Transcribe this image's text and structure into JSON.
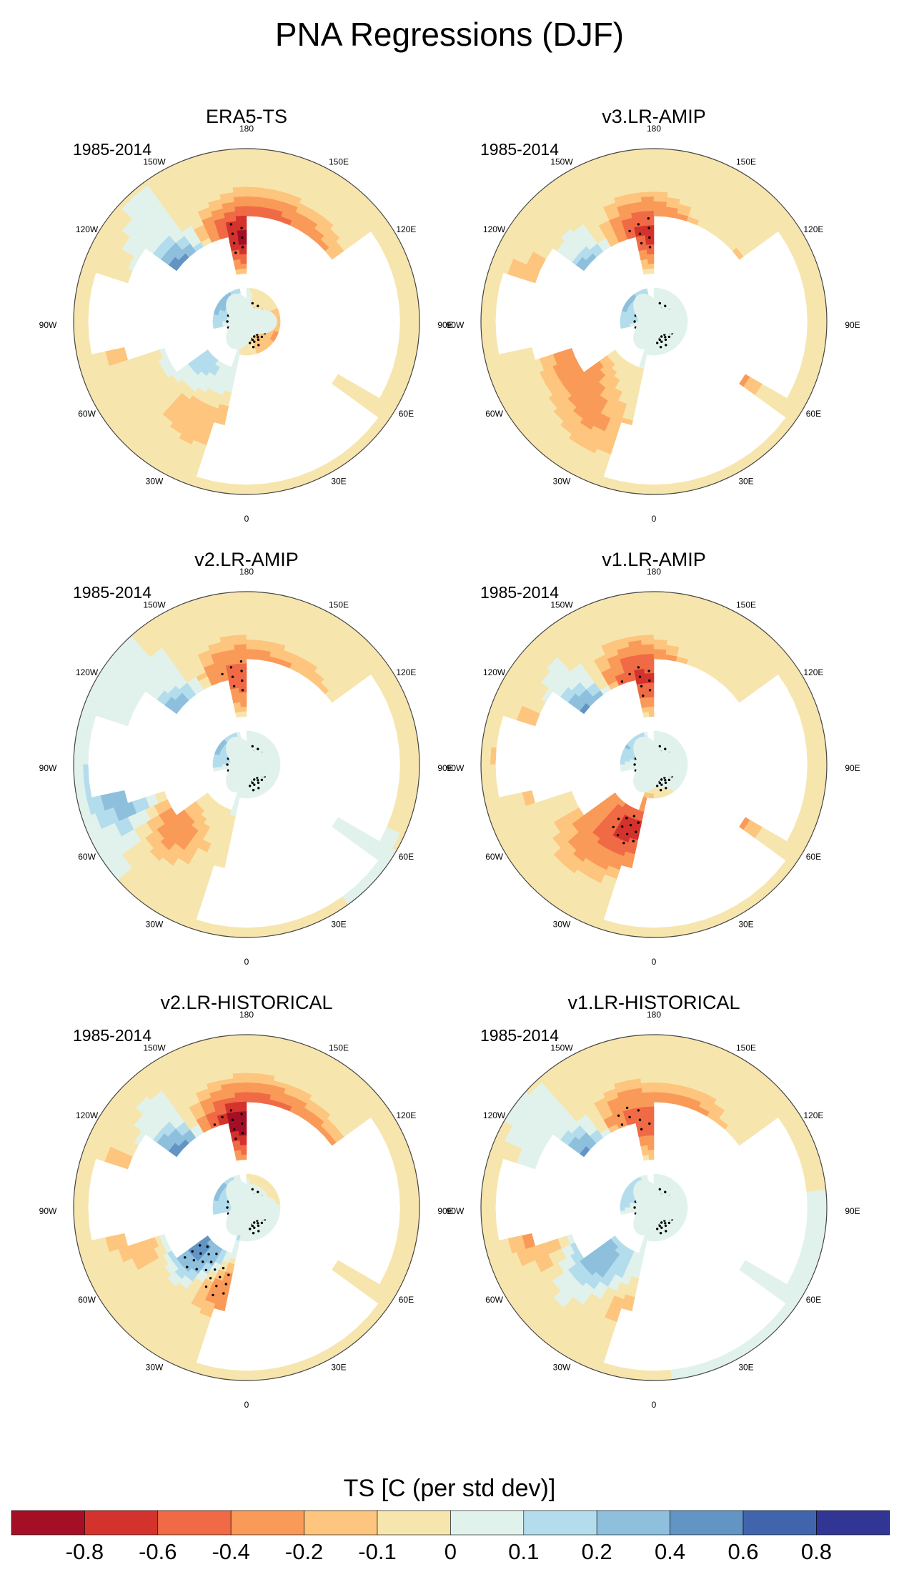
{
  "figure": {
    "title": "PNA Regressions (DJF)"
  },
  "colors": {
    "land": "#ffffff",
    "coast": "#8a8a8a",
    "border": "#444444"
  },
  "chart_data": [
    {
      "type": "heatmap",
      "projection": "north-polar-stereographic",
      "title": "ERA5-TS",
      "period": "1985-2014",
      "lon_labels": [
        "180",
        "150E",
        "120E",
        "90E",
        "60E",
        "30E",
        "0",
        "30W",
        "60W",
        "90W",
        "120W",
        "150W"
      ],
      "anomalies": [
        {
          "lon": -175,
          "lat": 47,
          "value": -0.7,
          "stipple": true
        },
        {
          "lon": 165,
          "lat": 42,
          "value": -0.35
        },
        {
          "lon": -135,
          "lat": 58,
          "value": 0.55,
          "stipple": true
        },
        {
          "lon": -115,
          "lat": 50,
          "value": 0.5
        },
        {
          "lon": 140,
          "lat": 42,
          "value": -0.25
        },
        {
          "lon": 20,
          "lat": 85,
          "value": 0.08,
          "stipple": true
        },
        {
          "lon": -90,
          "lat": 25,
          "value": -0.3
        },
        {
          "lon": -30,
          "lat": 35,
          "value": -0.2
        },
        {
          "lon": -40,
          "lat": 55,
          "value": 0.15
        },
        {
          "lon": 60,
          "lat": 75,
          "value": -0.25
        },
        {
          "lon": 10,
          "lat": 40,
          "value": -0.15
        }
      ]
    },
    {
      "type": "heatmap",
      "projection": "north-polar-stereographic",
      "title": "v3.LR-AMIP",
      "period": "1985-2014",
      "lon_labels": [
        "180",
        "150E",
        "120E",
        "90E",
        "60E",
        "30E",
        "0",
        "30W",
        "60W",
        "90W",
        "120W",
        "150W"
      ],
      "anomalies": [
        {
          "lon": -175,
          "lat": 45,
          "value": -0.7,
          "stipple": true
        },
        {
          "lon": -140,
          "lat": 57,
          "value": 0.4
        },
        {
          "lon": -110,
          "lat": 55,
          "value": 0.35
        },
        {
          "lon": 20,
          "lat": 85,
          "value": 0.08,
          "stipple": true
        },
        {
          "lon": -60,
          "lat": 45,
          "value": -0.3
        },
        {
          "lon": -30,
          "lat": 30,
          "value": -0.2
        },
        {
          "lon": 40,
          "lat": 40,
          "value": -0.5
        },
        {
          "lon": -100,
          "lat": 25,
          "value": -0.3
        },
        {
          "lon": 120,
          "lat": 45,
          "value": -0.2
        }
      ]
    },
    {
      "type": "heatmap",
      "projection": "north-polar-stereographic",
      "title": "v2.LR-AMIP",
      "period": "1985-2014",
      "lon_labels": [
        "180",
        "150E",
        "120E",
        "90E",
        "60E",
        "30E",
        "0",
        "30W",
        "60W",
        "90W",
        "120W",
        "150W"
      ],
      "anomalies": [
        {
          "lon": -175,
          "lat": 45,
          "value": -0.5,
          "stipple": true
        },
        {
          "lon": -130,
          "lat": 57,
          "value": 0.45,
          "stipple": true
        },
        {
          "lon": -110,
          "lat": 50,
          "value": 0.3
        },
        {
          "lon": 20,
          "lat": 85,
          "value": 0.08,
          "stipple": true
        },
        {
          "lon": -50,
          "lat": 40,
          "value": -0.3
        },
        {
          "lon": -80,
          "lat": 25,
          "value": 0.4
        },
        {
          "lon": 150,
          "lat": 45,
          "value": -0.25
        }
      ]
    },
    {
      "type": "heatmap",
      "projection": "north-polar-stereographic",
      "title": "v1.LR-AMIP",
      "period": "1985-2014",
      "lon_labels": [
        "180",
        "150E",
        "120E",
        "90E",
        "60E",
        "30E",
        "0",
        "30W",
        "60W",
        "90W",
        "120W",
        "150W"
      ],
      "anomalies": [
        {
          "lon": -170,
          "lat": 45,
          "value": -0.7,
          "stipple": true
        },
        {
          "lon": -135,
          "lat": 55,
          "value": 0.5,
          "stipple": true
        },
        {
          "lon": -110,
          "lat": 50,
          "value": 0.45
        },
        {
          "lon": 20,
          "lat": 85,
          "value": 0.08,
          "stipple": true
        },
        {
          "lon": -20,
          "lat": 55,
          "value": -0.65,
          "stipple": true
        },
        {
          "lon": -40,
          "lat": 35,
          "value": -0.2
        },
        {
          "lon": 40,
          "lat": 40,
          "value": -0.5
        },
        {
          "lon": -95,
          "lat": 25,
          "value": -0.35
        }
      ]
    },
    {
      "type": "heatmap",
      "projection": "north-polar-stereographic",
      "title": "v2.LR-HISTORICAL",
      "period": "1985-2014",
      "lon_labels": [
        "180",
        "150E",
        "120E",
        "90E",
        "60E",
        "30E",
        "0",
        "30W",
        "60W",
        "90W",
        "120W",
        "150W"
      ],
      "anomalies": [
        {
          "lon": -170,
          "lat": 47,
          "value": -0.75,
          "stipple": true
        },
        {
          "lon": 165,
          "lat": 45,
          "value": -0.55
        },
        {
          "lon": 130,
          "lat": 50,
          "value": -0.5,
          "stipple": true
        },
        {
          "lon": -135,
          "lat": 55,
          "value": 0.6,
          "stipple": true
        },
        {
          "lon": -110,
          "lat": 48,
          "value": 0.5
        },
        {
          "lon": 20,
          "lat": 85,
          "value": 0.08,
          "stipple": true
        },
        {
          "lon": -45,
          "lat": 55,
          "value": 0.7,
          "stipple": true
        },
        {
          "lon": -20,
          "lat": 50,
          "value": -0.5,
          "stipple": true
        },
        {
          "lon": -95,
          "lat": 28,
          "value": -0.5,
          "stipple": true
        },
        {
          "lon": -60,
          "lat": 40,
          "value": -0.2
        }
      ]
    },
    {
      "type": "heatmap",
      "projection": "north-polar-stereographic",
      "title": "v1.LR-HISTORICAL",
      "period": "1985-2014",
      "lon_labels": [
        "180",
        "150E",
        "120E",
        "90E",
        "60E",
        "30E",
        "0",
        "30W",
        "60W",
        "90W",
        "120W",
        "150W"
      ],
      "anomalies": [
        {
          "lon": -165,
          "lat": 45,
          "value": -0.5,
          "stipple": true
        },
        {
          "lon": 160,
          "lat": 45,
          "value": -0.4,
          "stipple": true
        },
        {
          "lon": -135,
          "lat": 55,
          "value": 0.5,
          "stipple": true
        },
        {
          "lon": -110,
          "lat": 48,
          "value": 0.35
        },
        {
          "lon": 20,
          "lat": 85,
          "value": 0.08,
          "stipple": true
        },
        {
          "lon": -45,
          "lat": 50,
          "value": 0.35
        },
        {
          "lon": -80,
          "lat": 30,
          "value": -0.3
        },
        {
          "lon": -20,
          "lat": 40,
          "value": -0.2
        },
        {
          "lon": 30,
          "lat": 45,
          "value": 0.3
        }
      ]
    }
  ],
  "colorbar": {
    "title": "TS [C (per std dev)]",
    "colors": [
      "#a50f26",
      "#d4322c",
      "#ef6a45",
      "#f99a58",
      "#fdc57d",
      "#f7e5ae",
      "#e1f2ec",
      "#b3ddec",
      "#8ec0dd",
      "#6294c4",
      "#4065ad",
      "#313695"
    ],
    "tick_labels": [
      "-0.8",
      "-0.6",
      "-0.4",
      "-0.2",
      "-0.1",
      "0",
      "0.1",
      "0.2",
      "0.4",
      "0.6",
      "0.8"
    ],
    "levels": [
      -0.8,
      -0.6,
      -0.4,
      -0.2,
      -0.1,
      0,
      0.1,
      0.2,
      0.4,
      0.6,
      0.8
    ]
  }
}
